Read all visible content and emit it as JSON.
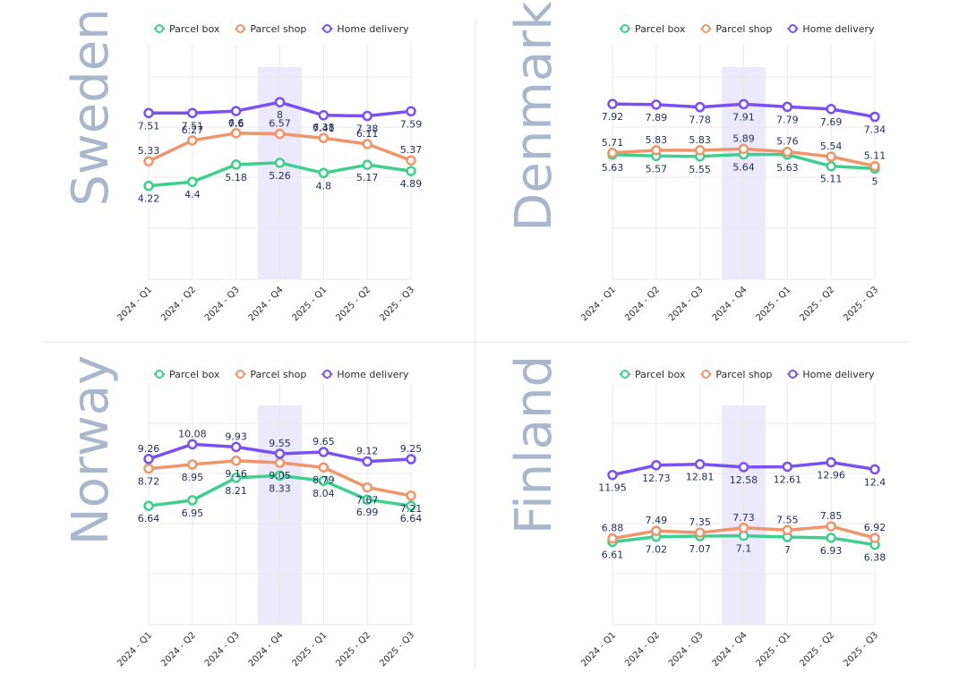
{
  "chart_data": [
    {
      "type": "line",
      "title": "Sweden",
      "categories": [
        "2024 - Q1",
        "2024 - Q2",
        "2024 - Q3",
        "2024 - Q4",
        "2025 - Q1",
        "2025 - Q2",
        "2025 - Q3"
      ],
      "highlight_category": "2024 - Q4",
      "ylim": [
        0,
        11
      ],
      "series": [
        {
          "name": "Parcel box",
          "values": [
            4.22,
            4.4,
            5.18,
            5.26,
            4.8,
            5.17,
            4.89
          ]
        },
        {
          "name": "Parcel shop",
          "values": [
            5.33,
            6.27,
            6.6,
            6.57,
            6.38,
            6.11,
            5.37
          ]
        },
        {
          "name": "Home delivery",
          "values": [
            7.51,
            7.51,
            7.6,
            8,
            7.41,
            7.38,
            7.59
          ]
        }
      ]
    },
    {
      "type": "line",
      "title": "Denmark",
      "categories": [
        "2024 - Q1",
        "2024 - Q2",
        "2024 - Q3",
        "2024 - Q4",
        "2025 - Q1",
        "2025 - Q2",
        "2025 - Q3"
      ],
      "highlight_category": "2024 - Q4",
      "ylim": [
        0,
        11
      ],
      "series": [
        {
          "name": "Parcel box",
          "values": [
            5.63,
            5.57,
            5.55,
            5.64,
            5.63,
            5.11,
            5
          ]
        },
        {
          "name": "Parcel shop",
          "values": [
            5.71,
            5.83,
            5.83,
            5.89,
            5.76,
            5.54,
            5.11
          ]
        },
        {
          "name": "Home delivery",
          "values": [
            7.92,
            7.89,
            7.78,
            7.91,
            7.79,
            7.69,
            7.34
          ]
        }
      ]
    },
    {
      "type": "line",
      "title": "Norway",
      "categories": [
        "2024 - Q1",
        "2024 - Q2",
        "2024 - Q3",
        "2024 - Q4",
        "2025 - Q1",
        "2025 - Q2",
        "2025 - Q3"
      ],
      "highlight_category": "2024 - Q4",
      "ylim": [
        0,
        14
      ],
      "series": [
        {
          "name": "Parcel box",
          "values": [
            6.64,
            6.95,
            8.21,
            8.33,
            8.04,
            6.99,
            6.64
          ]
        },
        {
          "name": "Parcel shop",
          "values": [
            8.72,
            8.95,
            9.16,
            9.05,
            8.79,
            7.67,
            7.21
          ]
        },
        {
          "name": "Home delivery",
          "values": [
            9.26,
            10.08,
            9.93,
            9.55,
            9.65,
            9.12,
            9.25
          ]
        }
      ]
    },
    {
      "type": "line",
      "title": "Finland",
      "categories": [
        "2024 - Q1",
        "2024 - Q2",
        "2024 - Q3",
        "2024 - Q4",
        "2025 - Q1",
        "2025 - Q2",
        "2025 - Q3"
      ],
      "highlight_category": "2024 - Q4",
      "ylim": [
        0,
        20
      ],
      "series": [
        {
          "name": "Parcel box",
          "values": [
            6.61,
            7.02,
            7.07,
            7.1,
            7,
            6.93,
            6.38
          ]
        },
        {
          "name": "Parcel shop",
          "values": [
            6.88,
            7.49,
            7.35,
            7.73,
            7.55,
            7.85,
            6.92
          ]
        },
        {
          "name": "Home delivery",
          "values": [
            11.95,
            12.73,
            12.81,
            12.58,
            12.61,
            12.96,
            12.4
          ]
        }
      ]
    }
  ],
  "legend": {
    "items": [
      "Parcel box",
      "Parcel shop",
      "Home delivery"
    ],
    "placement": "top"
  },
  "colors": {
    "Parcel box": "#3ecf8e",
    "Parcel shop": "#f0946a",
    "Home delivery": "#7950f2",
    "highlight": "#ece9fc",
    "grid": "#e8e8e8",
    "panel_title": "#a9b6cb",
    "value_label": "#1f2d56"
  }
}
